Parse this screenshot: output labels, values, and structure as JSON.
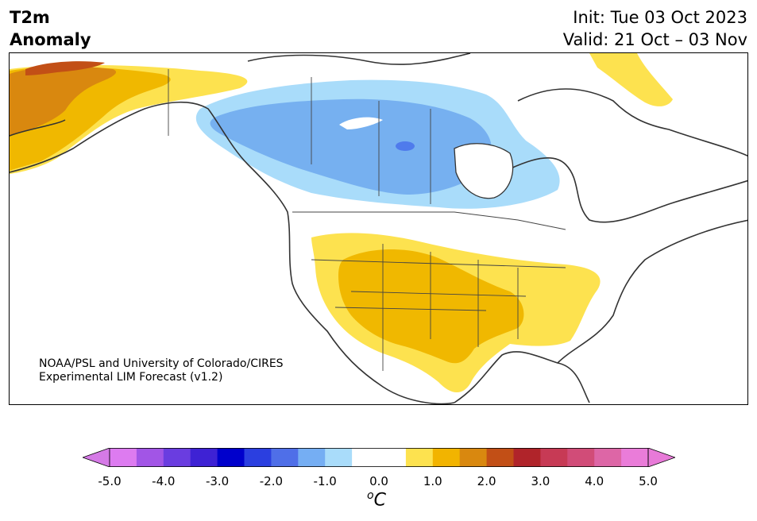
{
  "header": {
    "title_line1": "T2m",
    "title_line2": "Anomaly",
    "init": "Init: Tue 03 Oct 2023",
    "valid": "Valid: 21 Oct – 03 Nov"
  },
  "map": {
    "credit_line1": "NOAA/PSL and University of Colorado/CIRES",
    "credit_line2": "Experimental LIM Forecast (v1.2)",
    "colors": {
      "coast": "#333333",
      "border": "#444444",
      "blue_light": "#a9dcfa",
      "blue_mid": "#76b0f0",
      "blue_dark": "#4f7bec",
      "yellow": "#fde24f",
      "gold": "#f0b800",
      "orange": "#d9880f",
      "rust": "#c24f16"
    }
  },
  "colorbar": {
    "colors": [
      "#dd7bf0",
      "#a255e6",
      "#6a3de0",
      "#3e22d4",
      "#0000cc",
      "#2b3fe0",
      "#4f6fe8",
      "#75aef3",
      "#a9dcfa",
      "#ffffff",
      "#ffffff",
      "#fde24f",
      "#f2b400",
      "#d9880f",
      "#c24f16",
      "#b0242a",
      "#c73a55",
      "#d14c78",
      "#dd66a6",
      "#ea7cd9"
    ],
    "under_color": "#d57ae6",
    "over_color": "#e87ad8",
    "ticks": [
      "-5.0",
      "-4.0",
      "-3.0",
      "-2.0",
      "-1.0",
      "0.0",
      "1.0",
      "2.0",
      "3.0",
      "4.0",
      "5.0"
    ],
    "units_label": "C",
    "units_sup": "o"
  }
}
